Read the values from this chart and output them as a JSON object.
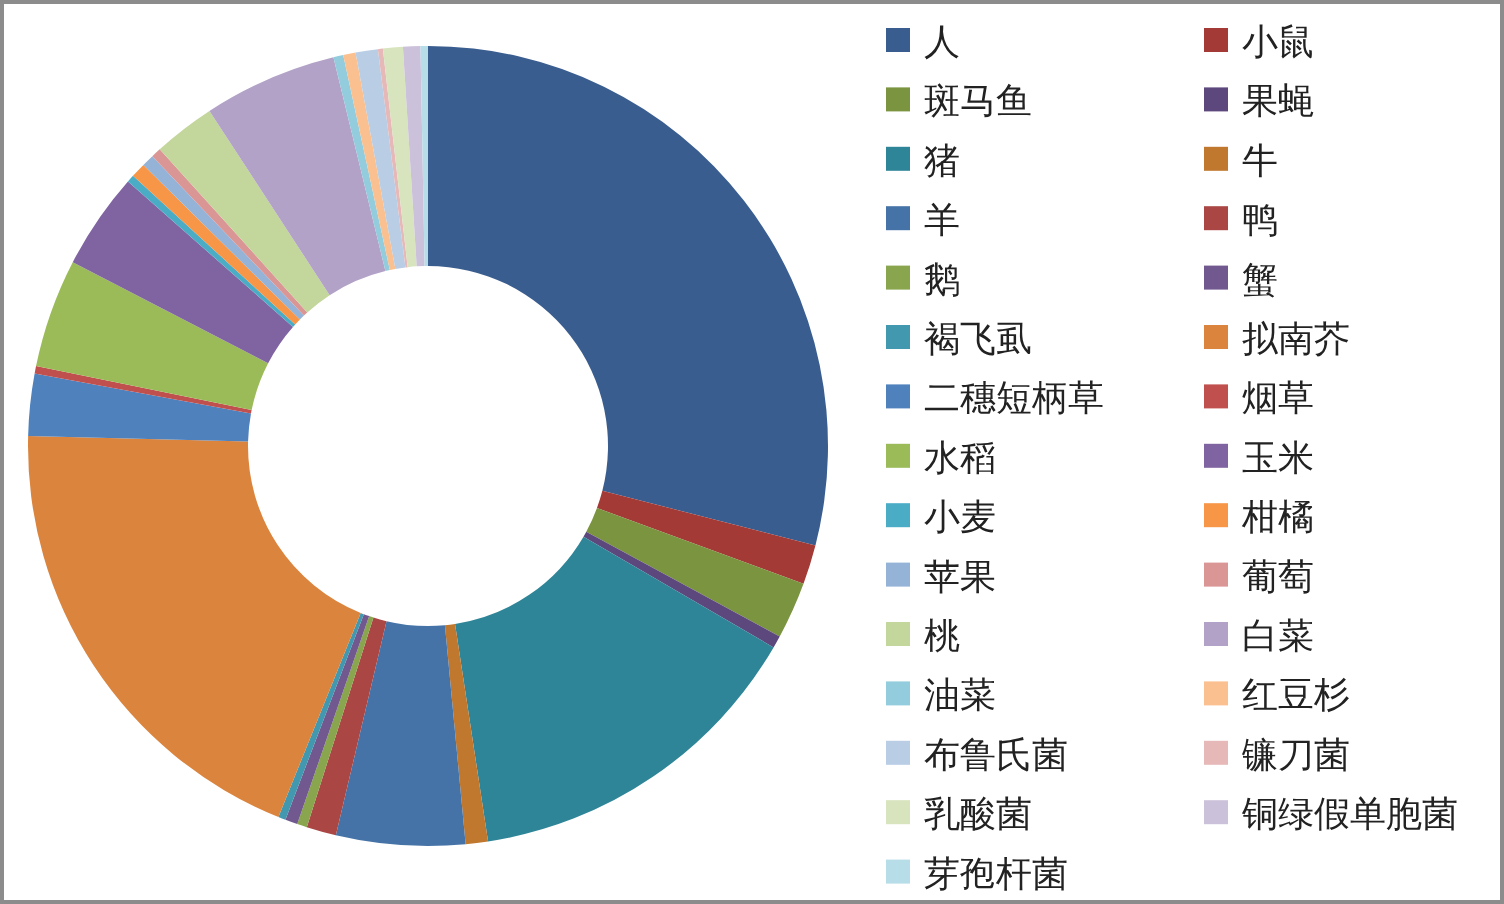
{
  "chart_data": {
    "type": "donut",
    "legend": "right",
    "categories": [
      "人",
      "小鼠",
      "斑马鱼",
      "果蝇",
      "猪",
      "牛",
      "羊",
      "鸭",
      "鹅",
      "蟹",
      "褐飞虱",
      "拟南芥",
      "二穗短柄草",
      "烟草",
      "水稻",
      "玉米",
      "小麦",
      "柑橘",
      "苹果",
      "葡萄",
      "桃",
      "白菜",
      "油菜",
      "红豆杉",
      "布鲁氏菌",
      "镰刀菌",
      "乳酸菌",
      "铜绿假单胞菌",
      "芽孢杆菌"
    ],
    "values": [
      29,
      1.6,
      2.3,
      0.5,
      14.2,
      0.9,
      5.2,
      1.2,
      0.4,
      0.5,
      0.3,
      19.3,
      2.5,
      0.3,
      4.4,
      3.9,
      0.3,
      0.6,
      0.5,
      0.4,
      2.5,
      5.4,
      0.4,
      0.5,
      0.9,
      0.2,
      0.8,
      0.7,
      0.3
    ],
    "colors": [
      "#3a5d8f",
      "#a33a35",
      "#7a9440",
      "#5d487e",
      "#2e8597",
      "#c0772e",
      "#4573a7",
      "#aa4643",
      "#89a54e",
      "#71588f",
      "#4198af",
      "#db843d",
      "#4f81bd",
      "#c0504d",
      "#9bbb59",
      "#8064a2",
      "#4bacc6",
      "#f79646",
      "#95b3d7",
      "#d99694",
      "#c3d69b",
      "#b2a2c7",
      "#93cddd",
      "#fac090",
      "#b9cde5",
      "#e6b9b8",
      "#d7e4bd",
      "#ccc1da",
      "#b7dde8"
    ]
  }
}
